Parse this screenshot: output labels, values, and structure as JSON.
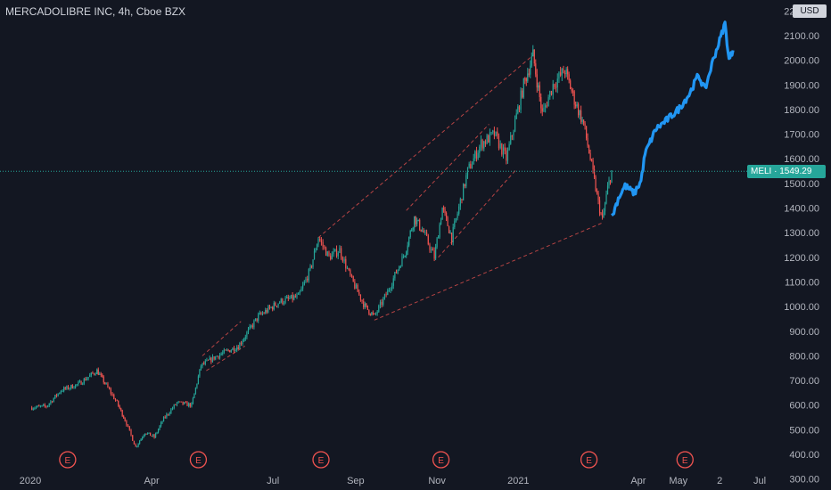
{
  "header": {
    "title": "MERCADOLIBRE INC, 4h, Cboe BZX",
    "currency": "USD"
  },
  "price_tag": {
    "symbol": "MELI",
    "price": "1549.29",
    "value": 1549.29
  },
  "earnings_markers": [
    {
      "label": "E",
      "x": "2020-01-29"
    },
    {
      "label": "E",
      "x": "2020-05-06"
    },
    {
      "label": "E",
      "x": "2020-08-06"
    },
    {
      "label": "E",
      "x": "2020-11-04"
    },
    {
      "label": "E",
      "x": "2021-02-23"
    },
    {
      "label": "E",
      "x": "2021-05-06"
    }
  ],
  "colors": {
    "background": "#131722",
    "up": "#26a69a",
    "down": "#ef5350",
    "forecast": "#2196f3",
    "drawing": "#ef5350",
    "text": "#b2b5be"
  },
  "chart_data": {
    "type": "line",
    "title": "MERCADOLIBRE INC, 4h, Cboe BZX",
    "xlabel": "",
    "ylabel": "",
    "ylim": [
      270,
      2230
    ],
    "y_ticks": [
      "300.00",
      "400.00",
      "500.00",
      "600.00",
      "700.00",
      "800.00",
      "900.00",
      "1000.00",
      "1100.00",
      "1200.00",
      "1300.00",
      "1400.00",
      "1500.00",
      "1600.00",
      "1700.00",
      "1800.00",
      "1900.00",
      "2000.00",
      "2100.00",
      "2200.00"
    ],
    "x_ticks": [
      {
        "label": "2020",
        "x": "2020-01-01"
      },
      {
        "label": "Apr",
        "x": "2020-04-01"
      },
      {
        "label": "Jul",
        "x": "2020-07-01"
      },
      {
        "label": "Sep",
        "x": "2020-09-01"
      },
      {
        "label": "Nov",
        "x": "2020-11-01"
      },
      {
        "label": "2021",
        "x": "2021-01-01"
      },
      {
        "label": "Apr",
        "x": "2021-04-01"
      },
      {
        "label": "May",
        "x": "2021-05-01"
      },
      {
        "label": "2",
        "x": "2021-06-01"
      },
      {
        "label": "Jul",
        "x": "2021-07-01"
      }
    ],
    "series": [
      {
        "values": [
          {
            "x": "2020-01-01",
            "y": 590
          },
          {
            "x": "2020-01-13",
            "y": 595
          },
          {
            "x": "2020-01-24",
            "y": 660
          },
          {
            "x": "2020-02-06",
            "y": 685
          },
          {
            "x": "2020-02-20",
            "y": 740
          },
          {
            "x": "2020-02-27",
            "y": 680
          },
          {
            "x": "2020-03-06",
            "y": 610
          },
          {
            "x": "2020-03-12",
            "y": 540
          },
          {
            "x": "2020-03-20",
            "y": 430
          },
          {
            "x": "2020-03-27",
            "y": 490
          },
          {
            "x": "2020-04-03",
            "y": 470
          },
          {
            "x": "2020-04-10",
            "y": 545
          },
          {
            "x": "2020-04-20",
            "y": 610
          },
          {
            "x": "2020-05-01",
            "y": 600
          },
          {
            "x": "2020-05-08",
            "y": 760
          },
          {
            "x": "2020-05-20",
            "y": 800
          },
          {
            "x": "2020-06-05",
            "y": 840
          },
          {
            "x": "2020-06-20",
            "y": 960
          },
          {
            "x": "2020-07-06",
            "y": 1020
          },
          {
            "x": "2020-07-20",
            "y": 1040
          },
          {
            "x": "2020-07-29",
            "y": 1150
          },
          {
            "x": "2020-08-04",
            "y": 1280
          },
          {
            "x": "2020-08-12",
            "y": 1200
          },
          {
            "x": "2020-08-20",
            "y": 1230
          },
          {
            "x": "2020-08-28",
            "y": 1120
          },
          {
            "x": "2020-09-08",
            "y": 1000
          },
          {
            "x": "2020-09-15",
            "y": 960
          },
          {
            "x": "2020-09-25",
            "y": 1060
          },
          {
            "x": "2020-10-08",
            "y": 1220
          },
          {
            "x": "2020-10-15",
            "y": 1360
          },
          {
            "x": "2020-10-22",
            "y": 1300
          },
          {
            "x": "2020-10-30",
            "y": 1200
          },
          {
            "x": "2020-11-05",
            "y": 1400
          },
          {
            "x": "2020-11-12",
            "y": 1280
          },
          {
            "x": "2020-11-24",
            "y": 1550
          },
          {
            "x": "2020-12-04",
            "y": 1660
          },
          {
            "x": "2020-12-14",
            "y": 1700
          },
          {
            "x": "2020-12-23",
            "y": 1600
          },
          {
            "x": "2021-01-05",
            "y": 1900
          },
          {
            "x": "2021-01-12",
            "y": 2020
          },
          {
            "x": "2021-01-19",
            "y": 1780
          },
          {
            "x": "2021-01-27",
            "y": 1900
          },
          {
            "x": "2021-02-05",
            "y": 1960
          },
          {
            "x": "2021-02-12",
            "y": 1840
          },
          {
            "x": "2021-02-19",
            "y": 1740
          },
          {
            "x": "2021-02-24",
            "y": 1600
          },
          {
            "x": "2021-03-02",
            "y": 1420
          },
          {
            "x": "2021-03-05",
            "y": 1350
          },
          {
            "x": "2021-03-09",
            "y": 1480
          },
          {
            "x": "2021-03-12",
            "y": 1549.29
          }
        ]
      },
      {
        "values": [
          {
            "x": "2021-03-12",
            "y": 1360
          },
          {
            "x": "2021-03-17",
            "y": 1440
          },
          {
            "x": "2021-03-22",
            "y": 1490
          },
          {
            "x": "2021-03-29",
            "y": 1460
          },
          {
            "x": "2021-04-03",
            "y": 1510
          },
          {
            "x": "2021-04-06",
            "y": 1620
          },
          {
            "x": "2021-04-14",
            "y": 1720
          },
          {
            "x": "2021-04-23",
            "y": 1760
          },
          {
            "x": "2021-05-01",
            "y": 1800
          },
          {
            "x": "2021-05-09",
            "y": 1860
          },
          {
            "x": "2021-05-16",
            "y": 1940
          },
          {
            "x": "2021-05-21",
            "y": 1880
          },
          {
            "x": "2021-05-27",
            "y": 2000
          },
          {
            "x": "2021-06-01",
            "y": 2080
          },
          {
            "x": "2021-06-05",
            "y": 2150
          },
          {
            "x": "2021-06-08",
            "y": 2000
          },
          {
            "x": "2021-06-11",
            "y": 2040
          }
        ]
      }
    ],
    "annotations": [
      {
        "type": "trendline",
        "from": {
          "x": "2020-08-04",
          "y": 1280
        },
        "to": {
          "x": "2021-01-12",
          "y": 2020
        }
      },
      {
        "type": "trendline",
        "from": {
          "x": "2020-09-15",
          "y": 945
        },
        "to": {
          "x": "2021-03-05",
          "y": 1340
        }
      },
      {
        "type": "trendline",
        "from": {
          "x": "2020-10-09",
          "y": 1390
        },
        "to": {
          "x": "2020-12-10",
          "y": 1740
        }
      },
      {
        "type": "trendline",
        "from": {
          "x": "2020-11-02",
          "y": 1200
        },
        "to": {
          "x": "2020-12-31",
          "y": 1560
        }
      },
      {
        "type": "trendline",
        "from": {
          "x": "2020-05-09",
          "y": 800
        },
        "to": {
          "x": "2020-06-07",
          "y": 940
        }
      },
      {
        "type": "trendline",
        "from": {
          "x": "2020-05-12",
          "y": 740
        },
        "to": {
          "x": "2020-06-10",
          "y": 840
        }
      }
    ],
    "grid": false,
    "legend": "none"
  }
}
